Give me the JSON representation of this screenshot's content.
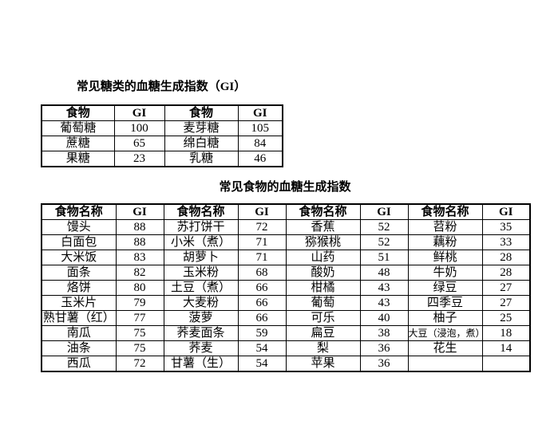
{
  "page": {
    "background_color": "#ffffff",
    "text_color": "#000000",
    "border_color": "#000000"
  },
  "sugar_table": {
    "title": "常见糖类的血糖生成指数（GI）",
    "headers": [
      "食物",
      "GI",
      "食物",
      "GI"
    ],
    "rows": [
      [
        "葡萄糖",
        "100",
        "麦芽糖",
        "105"
      ],
      [
        "蔗糖",
        "65",
        "绵白糖",
        "84"
      ],
      [
        "果糖",
        "23",
        "乳糖",
        "46"
      ]
    ]
  },
  "food_table": {
    "title": "常见食物的血糖生成指数",
    "headers": [
      "食物名称",
      "GI",
      "食物名称",
      "GI",
      "食物名称",
      "GI",
      "食物名称",
      "GI"
    ],
    "rows": [
      [
        "馒头",
        "88",
        "苏打饼干",
        "72",
        "香蕉",
        "52",
        "苕粉",
        "35"
      ],
      [
        "白面包",
        "88",
        "小米（煮）",
        "71",
        "猕猴桃",
        "52",
        "藕粉",
        "33"
      ],
      [
        "大米饭",
        "83",
        "胡萝卜",
        "71",
        "山药",
        "51",
        "鲜桃",
        "28"
      ],
      [
        "面条",
        "82",
        "玉米粉",
        "68",
        "酸奶",
        "48",
        "牛奶",
        "28"
      ],
      [
        "烙饼",
        "80",
        "土豆（煮）",
        "66",
        "柑橘",
        "43",
        "绿豆",
        "27"
      ],
      [
        "玉米片",
        "79",
        "大麦粉",
        "66",
        "葡萄",
        "43",
        "四季豆",
        "27"
      ],
      [
        "熟甘薯（红）",
        "77",
        "菠萝",
        "66",
        "可乐",
        "40",
        "柚子",
        "25"
      ],
      [
        "南瓜",
        "75",
        "荞麦面条",
        "59",
        "扁豆",
        "38",
        "大豆（浸泡，煮）",
        "18"
      ],
      [
        "油条",
        "75",
        "荞麦",
        "54",
        "梨",
        "36",
        "花生",
        "14"
      ],
      [
        "西瓜",
        "72",
        "甘薯（生）",
        "54",
        "苹果",
        "36",
        "",
        ""
      ]
    ]
  }
}
